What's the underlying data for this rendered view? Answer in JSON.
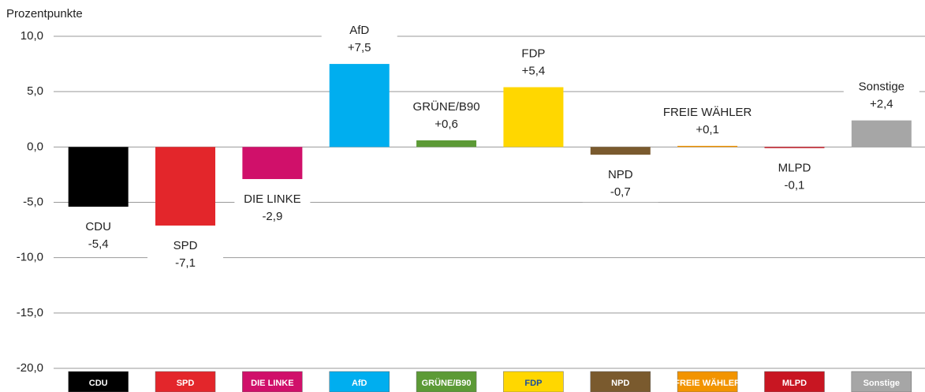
{
  "chart_data": {
    "type": "bar",
    "y_label": "Prozentpunkte",
    "categories": [
      "CDU",
      "SPD",
      "DIE LINKE",
      "AfD",
      "GRÜNE/B90",
      "FDP",
      "NPD",
      "FREIE WÄHLER",
      "MLPD",
      "Sonstige"
    ],
    "values": [
      -5.4,
      -7.1,
      -2.9,
      7.5,
      0.6,
      5.4,
      -0.7,
      0.1,
      -0.1,
      2.4
    ],
    "value_labels": [
      "-5,4",
      "-7,1",
      "-2,9",
      "+7,5",
      "+0,6",
      "+5,4",
      "-0,7",
      "+0,1",
      "-0,1",
      "+2,4"
    ],
    "colors": [
      "#000000",
      "#e3262b",
      "#d0106a",
      "#00aeef",
      "#5c9a36",
      "#ffd700",
      "#7a5a2e",
      "#f29400",
      "#c81622",
      "#a6a6a6"
    ],
    "ylim": [
      -20,
      10
    ],
    "yticks": [
      {
        "value": -20,
        "label": "-20,0"
      },
      {
        "value": -15,
        "label": "-15,0"
      },
      {
        "value": -10,
        "label": "-10,0"
      },
      {
        "value": -5,
        "label": "-5,0"
      },
      {
        "value": 0,
        "label": "0,0"
      },
      {
        "value": 5,
        "label": "5,0"
      },
      {
        "value": 10,
        "label": "10,0"
      }
    ],
    "grid": true
  }
}
